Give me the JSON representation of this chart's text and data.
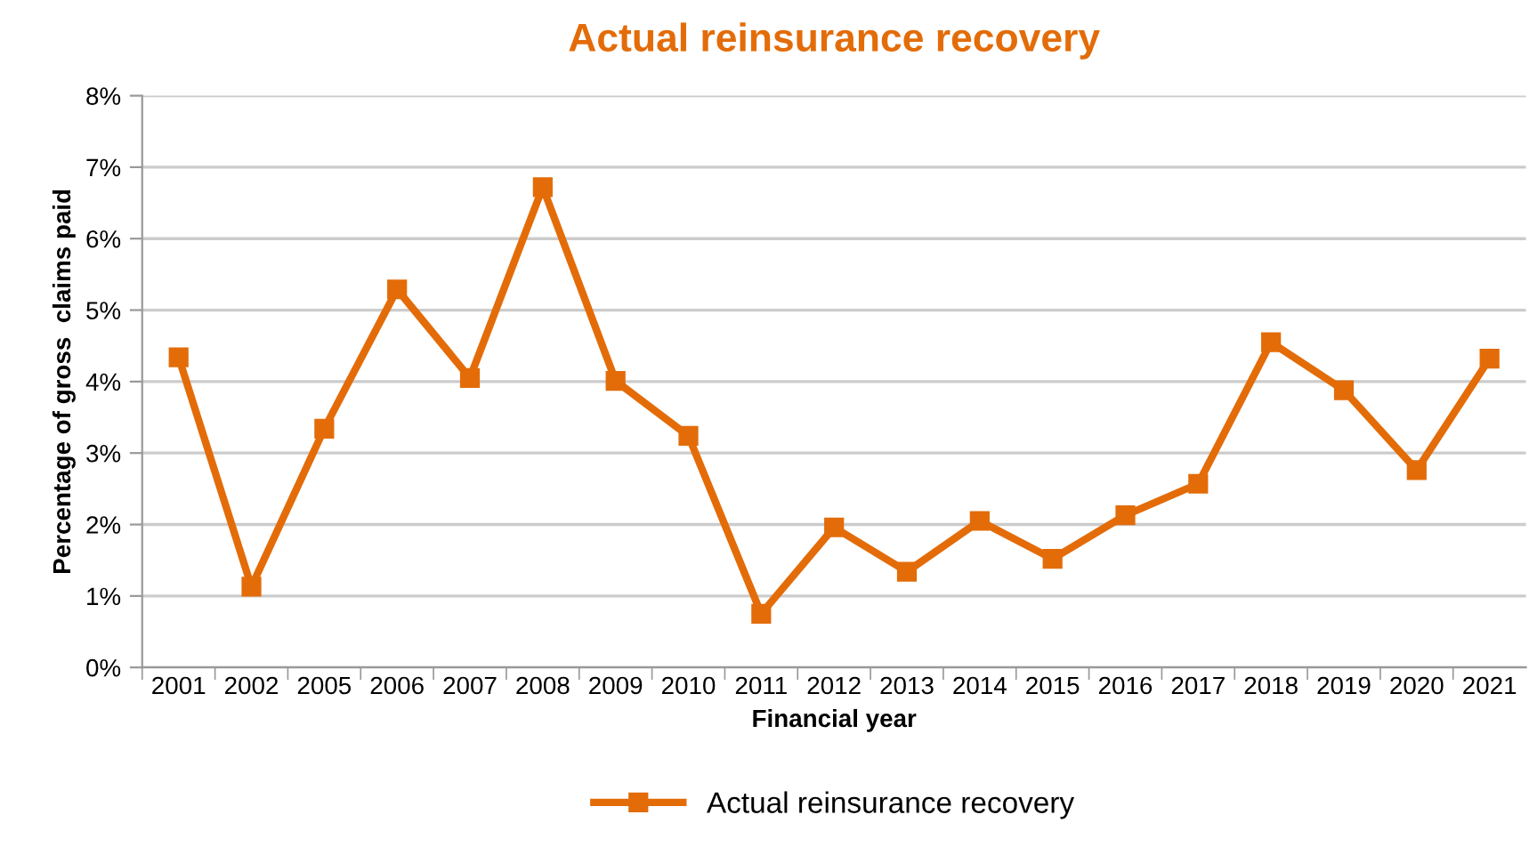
{
  "chart_data": {
    "type": "line",
    "title": "Actual reinsurance recovery",
    "xlabel": "Financial year",
    "ylabel": "Percentage of gross  claims paid",
    "categories": [
      "2001",
      "2002",
      "2005",
      "2006",
      "2007",
      "2008",
      "2009",
      "2010",
      "2011",
      "2012",
      "2013",
      "2014",
      "2015",
      "2016",
      "2017",
      "2018",
      "2019",
      "2020",
      "2021"
    ],
    "series": [
      {
        "name": "Actual reinsurance recovery",
        "color": "#e36c09",
        "values": [
          4.34,
          1.13,
          3.34,
          5.29,
          4.05,
          6.72,
          4.01,
          3.24,
          0.75,
          1.96,
          1.34,
          2.05,
          1.52,
          2.13,
          2.57,
          4.55,
          3.88,
          2.76,
          4.32
        ]
      }
    ],
    "ylim": [
      0,
      8
    ],
    "yticks": [
      {
        "value": 0,
        "label": "0%"
      },
      {
        "value": 1,
        "label": "1%"
      },
      {
        "value": 2,
        "label": "2%"
      },
      {
        "value": 3,
        "label": "3%"
      },
      {
        "value": 4,
        "label": "4%"
      },
      {
        "value": 5,
        "label": "5%"
      },
      {
        "value": 6,
        "label": "6%"
      },
      {
        "value": 7,
        "label": "7%"
      },
      {
        "value": 8,
        "label": "8%"
      }
    ],
    "grid": "y",
    "legend": "bottom",
    "marker": "square",
    "line_style": "solid"
  }
}
